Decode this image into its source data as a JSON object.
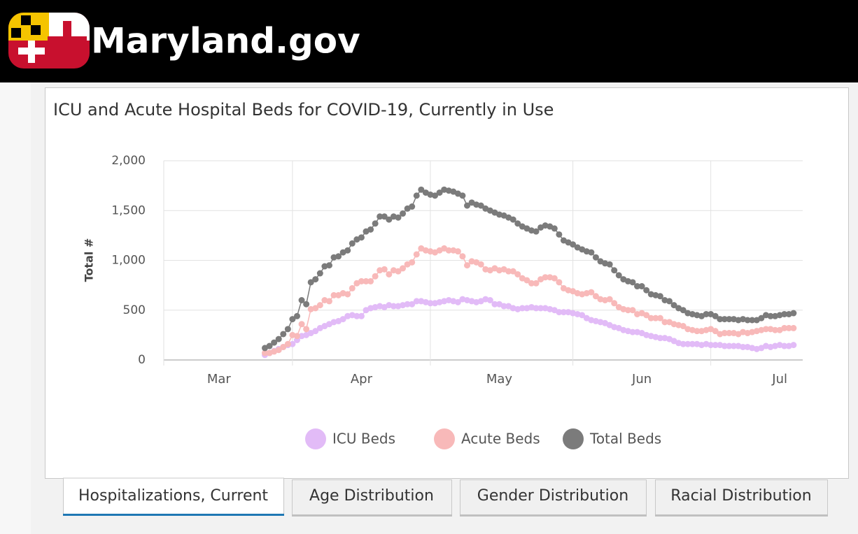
{
  "header": {
    "site": "Maryland.gov"
  },
  "chart_data": {
    "type": "line",
    "title": "ICU and Acute Hospital Beds for COVID-19, Currently in Use",
    "ylabel": "Total #",
    "x": [
      86,
      87,
      88,
      89,
      90,
      91,
      92,
      93,
      94,
      95,
      96,
      97,
      98,
      99,
      100,
      101,
      102,
      103,
      104,
      105,
      106,
      107,
      108,
      109,
      110,
      111,
      112,
      113,
      114,
      115,
      116,
      117,
      118,
      119,
      120,
      121,
      122,
      123,
      124,
      125,
      126,
      127,
      128,
      129,
      130,
      131,
      132,
      133,
      134,
      135,
      136,
      137,
      138,
      139,
      140,
      141,
      142,
      143,
      144,
      145,
      146,
      147,
      148,
      149,
      150,
      151,
      152,
      153,
      154,
      155,
      156,
      157,
      158,
      159,
      160,
      161,
      162,
      163,
      164,
      165,
      166,
      167,
      168,
      169,
      170,
      171,
      172,
      173,
      174,
      175,
      176,
      177,
      178,
      179,
      180,
      181,
      182,
      183,
      184,
      185,
      186,
      187,
      188,
      189,
      190,
      191,
      192,
      193,
      194,
      195,
      196,
      197,
      198,
      199,
      200,
      201
    ],
    "series": [
      {
        "name": "ICU Beds",
        "color": "#e2bbf7",
        "values": [
          50,
          70,
          90,
          110,
          130,
          150,
          160,
          200,
          240,
          250,
          270,
          290,
          320,
          340,
          360,
          380,
          390,
          410,
          440,
          450,
          440,
          440,
          500,
          520,
          530,
          540,
          530,
          550,
          540,
          540,
          550,
          560,
          560,
          590,
          590,
          580,
          570,
          570,
          580,
          590,
          600,
          590,
          580,
          610,
          600,
          590,
          580,
          590,
          610,
          600,
          560,
          560,
          540,
          540,
          520,
          510,
          520,
          520,
          530,
          520,
          520,
          520,
          510,
          500,
          480,
          480,
          480,
          470,
          460,
          450,
          420,
          400,
          390,
          380,
          370,
          350,
          330,
          320,
          300,
          290,
          280,
          280,
          270,
          250,
          240,
          230,
          220,
          220,
          210,
          190,
          170,
          160,
          160,
          160,
          160,
          150,
          160,
          150,
          150,
          150,
          140,
          140,
          140,
          140,
          130,
          130,
          120,
          110,
          120,
          140,
          130,
          140,
          150,
          140,
          140,
          150
        ]
      },
      {
        "name": "Acute Beds",
        "color": "#f8b9b9",
        "values": [
          70,
          70,
          85,
          100,
          130,
          160,
          250,
          240,
          360,
          310,
          510,
          520,
          550,
          600,
          590,
          650,
          650,
          670,
          660,
          720,
          770,
          790,
          790,
          790,
          840,
          900,
          910,
          860,
          900,
          890,
          920,
          960,
          980,
          1060,
          1120,
          1100,
          1090,
          1080,
          1100,
          1120,
          1100,
          1100,
          1090,
          1040,
          950,
          990,
          980,
          960,
          910,
          900,
          920,
          900,
          910,
          890,
          890,
          860,
          820,
          800,
          770,
          770,
          810,
          830,
          830,
          820,
          780,
          720,
          700,
          690,
          670,
          660,
          670,
          680,
          640,
          610,
          600,
          610,
          570,
          530,
          510,
          500,
          500,
          460,
          470,
          450,
          420,
          420,
          420,
          380,
          380,
          360,
          350,
          340,
          310,
          300,
          290,
          290,
          300,
          310,
          290,
          260,
          270,
          270,
          270,
          260,
          280,
          270,
          280,
          290,
          300,
          310,
          310,
          300,
          300,
          320,
          320,
          320
        ]
      },
      {
        "name": "Total Beds",
        "color": "#7b7b7b",
        "values": [
          120,
          140,
          175,
          210,
          260,
          310,
          410,
          440,
          600,
          560,
          780,
          810,
          870,
          940,
          950,
          1030,
          1040,
          1080,
          1100,
          1170,
          1210,
          1230,
          1290,
          1310,
          1370,
          1440,
          1440,
          1410,
          1440,
          1430,
          1470,
          1520,
          1540,
          1650,
          1710,
          1680,
          1660,
          1650,
          1680,
          1710,
          1700,
          1690,
          1670,
          1650,
          1550,
          1580,
          1560,
          1550,
          1520,
          1500,
          1480,
          1460,
          1450,
          1430,
          1410,
          1370,
          1340,
          1320,
          1300,
          1290,
          1330,
          1350,
          1340,
          1320,
          1260,
          1200,
          1180,
          1160,
          1130,
          1110,
          1090,
          1080,
          1030,
          990,
          970,
          960,
          900,
          850,
          810,
          790,
          780,
          740,
          740,
          700,
          660,
          650,
          640,
          600,
          590,
          550,
          520,
          500,
          470,
          460,
          450,
          440,
          460,
          460,
          440,
          410,
          410,
          410,
          410,
          400,
          410,
          400,
          400,
          400,
          420,
          450,
          440,
          440,
          450,
          460,
          460,
          470
        ]
      }
    ],
    "xlim": [
      64,
      203
    ],
    "xticks": [
      {
        "value": 76,
        "label": "Mar"
      },
      {
        "value": 107,
        "label": "Apr"
      },
      {
        "value": 137,
        "label": "May"
      },
      {
        "value": 168,
        "label": "Jun"
      },
      {
        "value": 198,
        "label": "Jul"
      }
    ],
    "xgrid": [
      64,
      92,
      122,
      153,
      183
    ],
    "ylim": [
      0,
      2000
    ],
    "yticks": [
      0,
      500,
      {
        "value": 1000,
        "label": "1,000"
      },
      {
        "value": 1500,
        "label": "1,500"
      },
      {
        "value": 2000,
        "label": "2,000"
      }
    ],
    "grid": true,
    "legend": "bottom"
  },
  "tabs": [
    "Hospitalizations, Current",
    "Age Distribution",
    "Gender Distribution",
    "Racial Distribution"
  ],
  "active_tab": 0
}
